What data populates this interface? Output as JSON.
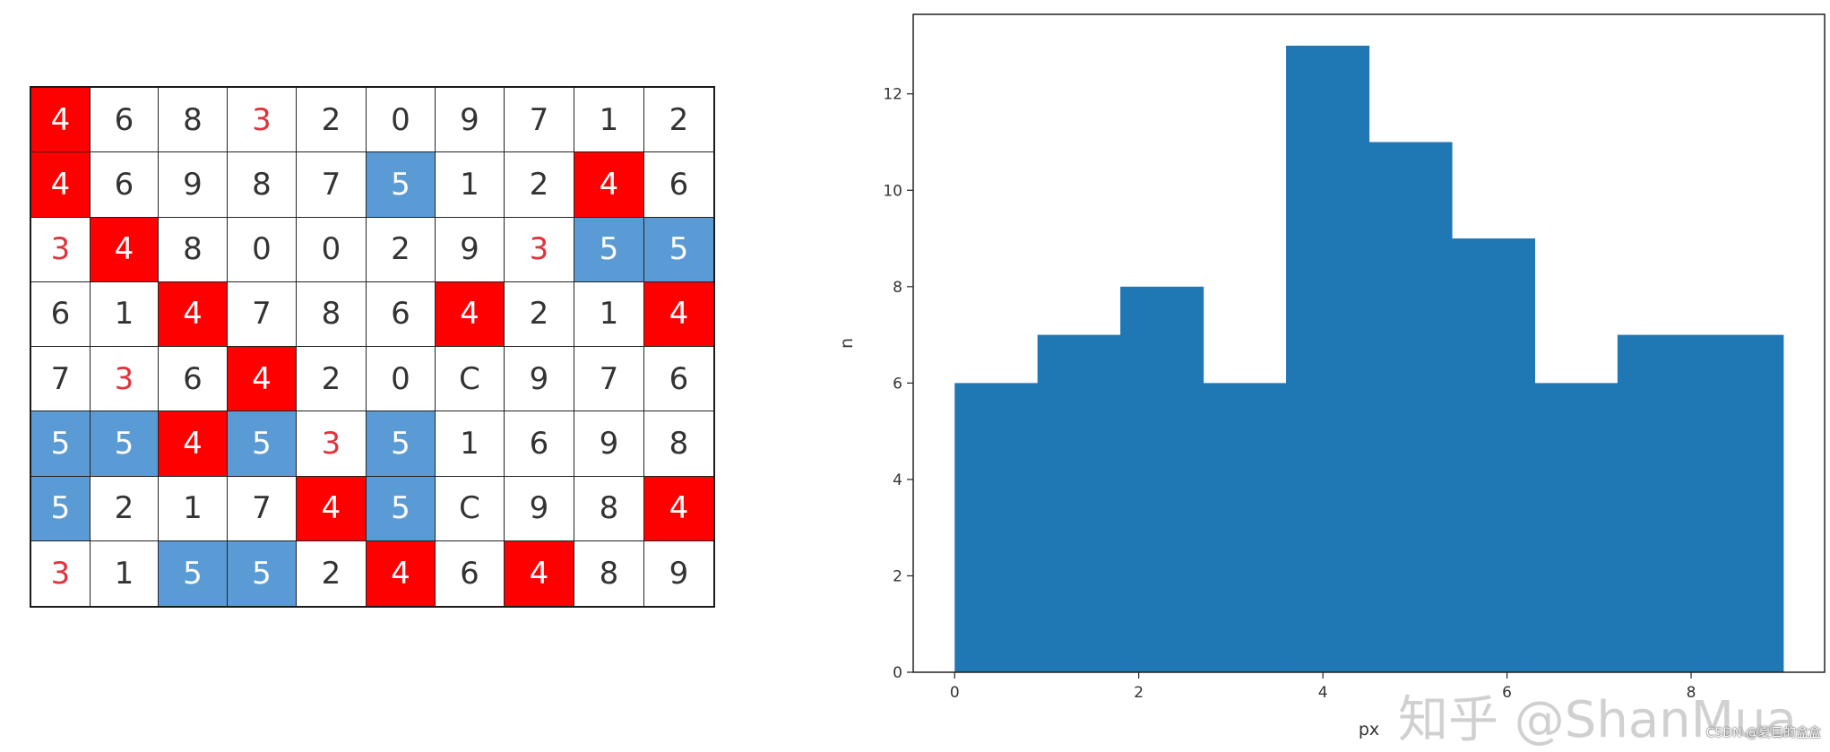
{
  "grid": {
    "rows": [
      [
        {
          "v": "4",
          "s": "red"
        },
        {
          "v": "6",
          "s": ""
        },
        {
          "v": "8",
          "s": ""
        },
        {
          "v": "3",
          "s": "redtext"
        },
        {
          "v": "2",
          "s": ""
        },
        {
          "v": "0",
          "s": ""
        },
        {
          "v": "9",
          "s": ""
        },
        {
          "v": "7",
          "s": ""
        },
        {
          "v": "1",
          "s": ""
        },
        {
          "v": "2",
          "s": ""
        }
      ],
      [
        {
          "v": "4",
          "s": "red"
        },
        {
          "v": "6",
          "s": ""
        },
        {
          "v": "9",
          "s": ""
        },
        {
          "v": "8",
          "s": ""
        },
        {
          "v": "7",
          "s": ""
        },
        {
          "v": "5",
          "s": "blue"
        },
        {
          "v": "1",
          "s": ""
        },
        {
          "v": "2",
          "s": ""
        },
        {
          "v": "4",
          "s": "red"
        },
        {
          "v": "6",
          "s": ""
        }
      ],
      [
        {
          "v": "3",
          "s": "redtext"
        },
        {
          "v": "4",
          "s": "red"
        },
        {
          "v": "8",
          "s": ""
        },
        {
          "v": "0",
          "s": ""
        },
        {
          "v": "0",
          "s": ""
        },
        {
          "v": "2",
          "s": ""
        },
        {
          "v": "9",
          "s": ""
        },
        {
          "v": "3",
          "s": "redtext"
        },
        {
          "v": "5",
          "s": "blue"
        },
        {
          "v": "5",
          "s": "blue"
        }
      ],
      [
        {
          "v": "6",
          "s": ""
        },
        {
          "v": "1",
          "s": ""
        },
        {
          "v": "4",
          "s": "red"
        },
        {
          "v": "7",
          "s": ""
        },
        {
          "v": "8",
          "s": ""
        },
        {
          "v": "6",
          "s": ""
        },
        {
          "v": "4",
          "s": "red"
        },
        {
          "v": "2",
          "s": ""
        },
        {
          "v": "1",
          "s": ""
        },
        {
          "v": "4",
          "s": "red"
        }
      ],
      [
        {
          "v": "7",
          "s": ""
        },
        {
          "v": "3",
          "s": "redtext"
        },
        {
          "v": "6",
          "s": ""
        },
        {
          "v": "4",
          "s": "red"
        },
        {
          "v": "2",
          "s": ""
        },
        {
          "v": "0",
          "s": ""
        },
        {
          "v": "C",
          "s": ""
        },
        {
          "v": "9",
          "s": ""
        },
        {
          "v": "7",
          "s": ""
        },
        {
          "v": "6",
          "s": ""
        }
      ],
      [
        {
          "v": "5",
          "s": "blue"
        },
        {
          "v": "5",
          "s": "blue"
        },
        {
          "v": "4",
          "s": "red"
        },
        {
          "v": "5",
          "s": "blue"
        },
        {
          "v": "3",
          "s": "redtext"
        },
        {
          "v": "5",
          "s": "blue"
        },
        {
          "v": "1",
          "s": ""
        },
        {
          "v": "6",
          "s": ""
        },
        {
          "v": "9",
          "s": ""
        },
        {
          "v": "8",
          "s": ""
        }
      ],
      [
        {
          "v": "5",
          "s": "blue"
        },
        {
          "v": "2",
          "s": ""
        },
        {
          "v": "1",
          "s": ""
        },
        {
          "v": "7",
          "s": ""
        },
        {
          "v": "4",
          "s": "red"
        },
        {
          "v": "5",
          "s": "blue"
        },
        {
          "v": "C",
          "s": ""
        },
        {
          "v": "9",
          "s": ""
        },
        {
          "v": "8",
          "s": ""
        },
        {
          "v": "4",
          "s": "red"
        }
      ],
      [
        {
          "v": "3",
          "s": "redtext"
        },
        {
          "v": "1",
          "s": ""
        },
        {
          "v": "5",
          "s": "blue"
        },
        {
          "v": "5",
          "s": "blue"
        },
        {
          "v": "2",
          "s": ""
        },
        {
          "v": "4",
          "s": "red"
        },
        {
          "v": "6",
          "s": ""
        },
        {
          "v": "4",
          "s": "red"
        },
        {
          "v": "8",
          "s": ""
        },
        {
          "v": "9",
          "s": ""
        }
      ]
    ],
    "colors": {
      "red": "#ff0000",
      "blue": "#5b9bd5",
      "redtext": "#e0343c"
    }
  },
  "chart_data": {
    "type": "bar",
    "title": "",
    "xlabel": "px",
    "ylabel": "n",
    "xlim": [
      -0.45,
      9.45
    ],
    "ylim": [
      0,
      13.65
    ],
    "xticks": [
      0,
      2,
      4,
      6,
      8
    ],
    "yticks": [
      0,
      2,
      4,
      6,
      8,
      10,
      12
    ],
    "bin_edges": [
      0,
      0.9,
      1.8,
      2.7,
      3.6,
      4.5,
      5.4,
      6.3,
      7.2,
      8.1,
      9.0
    ],
    "values": [
      6,
      7,
      8,
      6,
      13,
      11,
      9,
      6,
      7,
      7
    ],
    "bar_color": "#1f77b4",
    "grid": false
  },
  "watermark": "知乎 @ShanMua",
  "credit": "CSDN @夏目的盒盒"
}
